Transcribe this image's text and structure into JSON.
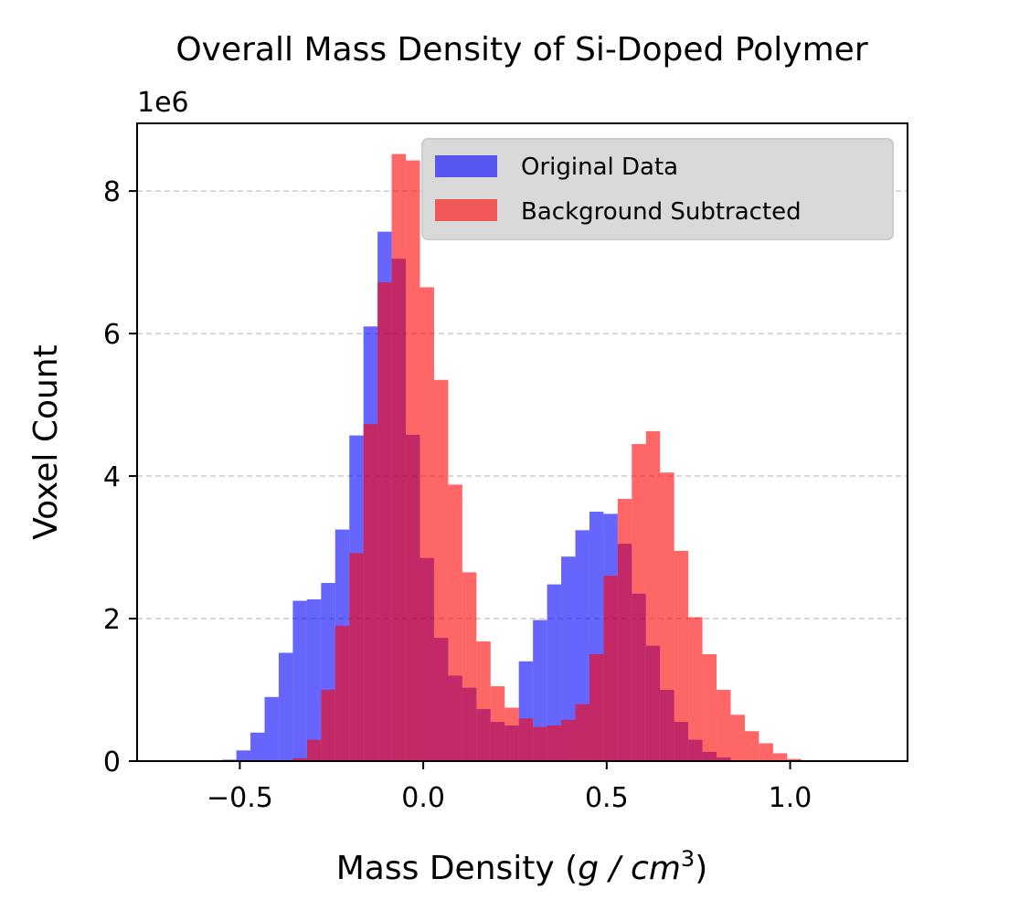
{
  "chart_data": {
    "type": "histogram",
    "title": "Overall Mass Density of Si-Doped Polymer",
    "xlabel_prefix": "Mass Density (",
    "xlabel_var": "g / cm",
    "xlabel_sup": "3",
    "xlabel_suffix": ")",
    "ylabel": "Voxel Count",
    "y_multiplier": "1e6",
    "xlim": [
      -0.78,
      1.32
    ],
    "ylim": [
      0,
      8.95
    ],
    "xticks": [
      -0.5,
      0.0,
      0.5,
      1.0
    ],
    "xtick_labels": [
      "−0.5",
      "0.0",
      "0.5",
      "1.0"
    ],
    "yticks": [
      0,
      2,
      4,
      6,
      8
    ],
    "ytick_labels": [
      "0",
      "2",
      "4",
      "6",
      "8"
    ],
    "grid": "y-dashed",
    "legend_position": "top-right",
    "bins": {
      "start": -0.548,
      "width": 0.0385,
      "count": 46
    },
    "series": [
      {
        "name": "Original Data",
        "color": "#0000ff",
        "opacity": 0.6,
        "values": [
          0.02,
          0.15,
          0.4,
          0.9,
          1.52,
          2.25,
          2.27,
          2.5,
          3.25,
          4.57,
          6.1,
          7.43,
          7.05,
          4.58,
          2.85,
          1.73,
          1.2,
          1.03,
          0.73,
          0.55,
          0.5,
          1.4,
          1.98,
          2.48,
          2.87,
          3.24,
          3.5,
          3.47,
          3.05,
          2.35,
          1.62,
          1.0,
          0.55,
          0.3,
          0.13,
          0.05,
          0.01,
          0,
          0,
          0,
          0,
          0,
          0,
          0,
          0,
          0
        ]
      },
      {
        "name": "Background Subtracted",
        "color": "#ff0000",
        "opacity": 0.6,
        "values": [
          0,
          0,
          0,
          0,
          0,
          0.04,
          0.3,
          1.0,
          1.9,
          2.92,
          4.73,
          6.72,
          8.52,
          8.43,
          6.65,
          5.35,
          3.88,
          2.65,
          1.68,
          1.05,
          0.75,
          0.6,
          0.48,
          0.5,
          0.58,
          0.8,
          1.5,
          2.6,
          3.68,
          4.45,
          4.63,
          4.05,
          2.95,
          2.02,
          1.5,
          1.0,
          0.65,
          0.42,
          0.25,
          0.11,
          0.03,
          0,
          0,
          0,
          0,
          0
        ]
      }
    ]
  }
}
